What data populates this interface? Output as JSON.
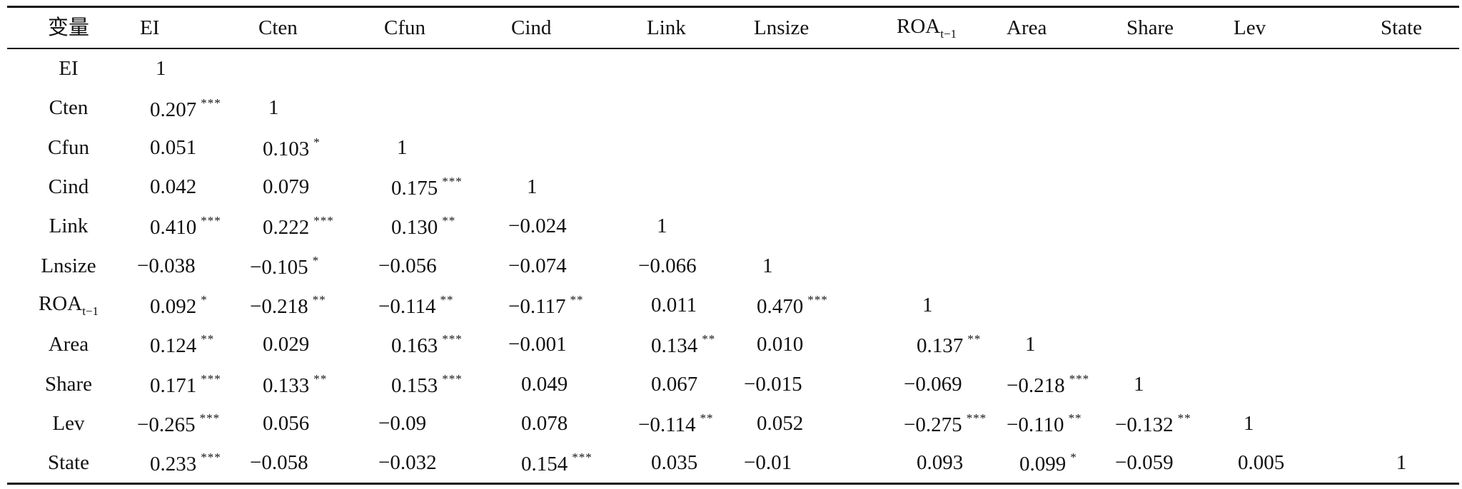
{
  "table": {
    "corner_label": "变量",
    "columns": [
      {
        "label": "EI"
      },
      {
        "label": "Cten"
      },
      {
        "label": "Cfun"
      },
      {
        "label": "Cind"
      },
      {
        "label": "Link"
      },
      {
        "label": "Lnsize"
      },
      {
        "label": "ROA",
        "sub": "t−1"
      },
      {
        "label": "Area"
      },
      {
        "label": "Share"
      },
      {
        "label": "Lev"
      },
      {
        "label": "State"
      }
    ],
    "rows": [
      {
        "label": "EI",
        "cells": [
          {
            "v": "1",
            "s": ""
          }
        ]
      },
      {
        "label": "Cten",
        "cells": [
          {
            "v": "0.207",
            "s": "***"
          },
          {
            "v": "1",
            "s": ""
          }
        ]
      },
      {
        "label": "Cfun",
        "cells": [
          {
            "v": "0.051",
            "s": ""
          },
          {
            "v": "0.103",
            "s": "*"
          },
          {
            "v": "1",
            "s": ""
          }
        ]
      },
      {
        "label": "Cind",
        "cells": [
          {
            "v": "0.042",
            "s": ""
          },
          {
            "v": "0.079",
            "s": ""
          },
          {
            "v": "0.175",
            "s": "***"
          },
          {
            "v": "1",
            "s": ""
          }
        ]
      },
      {
        "label": "Link",
        "cells": [
          {
            "v": "0.410",
            "s": "***"
          },
          {
            "v": "0.222",
            "s": "***"
          },
          {
            "v": "0.130",
            "s": "**"
          },
          {
            "v": "−0.024",
            "s": ""
          },
          {
            "v": "1",
            "s": ""
          }
        ]
      },
      {
        "label": "Lnsize",
        "cells": [
          {
            "v": "−0.038",
            "s": ""
          },
          {
            "v": "−0.105",
            "s": "*"
          },
          {
            "v": "−0.056",
            "s": ""
          },
          {
            "v": "−0.074",
            "s": ""
          },
          {
            "v": "−0.066",
            "s": ""
          },
          {
            "v": "1",
            "s": ""
          }
        ]
      },
      {
        "label": "ROA",
        "sub": "t−1",
        "cells": [
          {
            "v": "0.092",
            "s": "*"
          },
          {
            "v": "−0.218",
            "s": "**"
          },
          {
            "v": "−0.114",
            "s": "**"
          },
          {
            "v": "−0.117",
            "s": "**"
          },
          {
            "v": "0.011",
            "s": ""
          },
          {
            "v": "0.470",
            "s": "***"
          },
          {
            "v": "1",
            "s": ""
          }
        ]
      },
      {
        "label": "Area",
        "cells": [
          {
            "v": "0.124",
            "s": "**"
          },
          {
            "v": "0.029",
            "s": ""
          },
          {
            "v": "0.163",
            "s": "***"
          },
          {
            "v": "−0.001",
            "s": ""
          },
          {
            "v": "0.134",
            "s": "**"
          },
          {
            "v": "0.010",
            "s": ""
          },
          {
            "v": "0.137",
            "s": "**"
          },
          {
            "v": "1",
            "s": ""
          }
        ]
      },
      {
        "label": "Share",
        "cells": [
          {
            "v": "0.171",
            "s": "***"
          },
          {
            "v": "0.133",
            "s": "**"
          },
          {
            "v": "0.153",
            "s": "***"
          },
          {
            "v": "0.049",
            "s": ""
          },
          {
            "v": "0.067",
            "s": ""
          },
          {
            "v": "−0.015",
            "s": ""
          },
          {
            "v": "−0.069",
            "s": ""
          },
          {
            "v": "−0.218",
            "s": "***"
          },
          {
            "v": "1",
            "s": ""
          }
        ]
      },
      {
        "label": "Lev",
        "cells": [
          {
            "v": "−0.265",
            "s": "***"
          },
          {
            "v": "0.056",
            "s": ""
          },
          {
            "v": "−0.09",
            "s": ""
          },
          {
            "v": "0.078",
            "s": ""
          },
          {
            "v": "−0.114",
            "s": "**"
          },
          {
            "v": "0.052",
            "s": ""
          },
          {
            "v": "−0.275",
            "s": "***"
          },
          {
            "v": "−0.110",
            "s": "**"
          },
          {
            "v": "−0.132",
            "s": "**"
          },
          {
            "v": "1",
            "s": ""
          }
        ]
      },
      {
        "label": "State",
        "cells": [
          {
            "v": "0.233",
            "s": "***"
          },
          {
            "v": "−0.058",
            "s": ""
          },
          {
            "v": "−0.032",
            "s": ""
          },
          {
            "v": "0.154",
            "s": "***"
          },
          {
            "v": "0.035",
            "s": ""
          },
          {
            "v": "−0.01",
            "s": ""
          },
          {
            "v": "0.093",
            "s": ""
          },
          {
            "v": "0.099",
            "s": "*"
          },
          {
            "v": "−0.059",
            "s": ""
          },
          {
            "v": "0.005",
            "s": ""
          },
          {
            "v": "1",
            "s": ""
          }
        ]
      }
    ]
  }
}
